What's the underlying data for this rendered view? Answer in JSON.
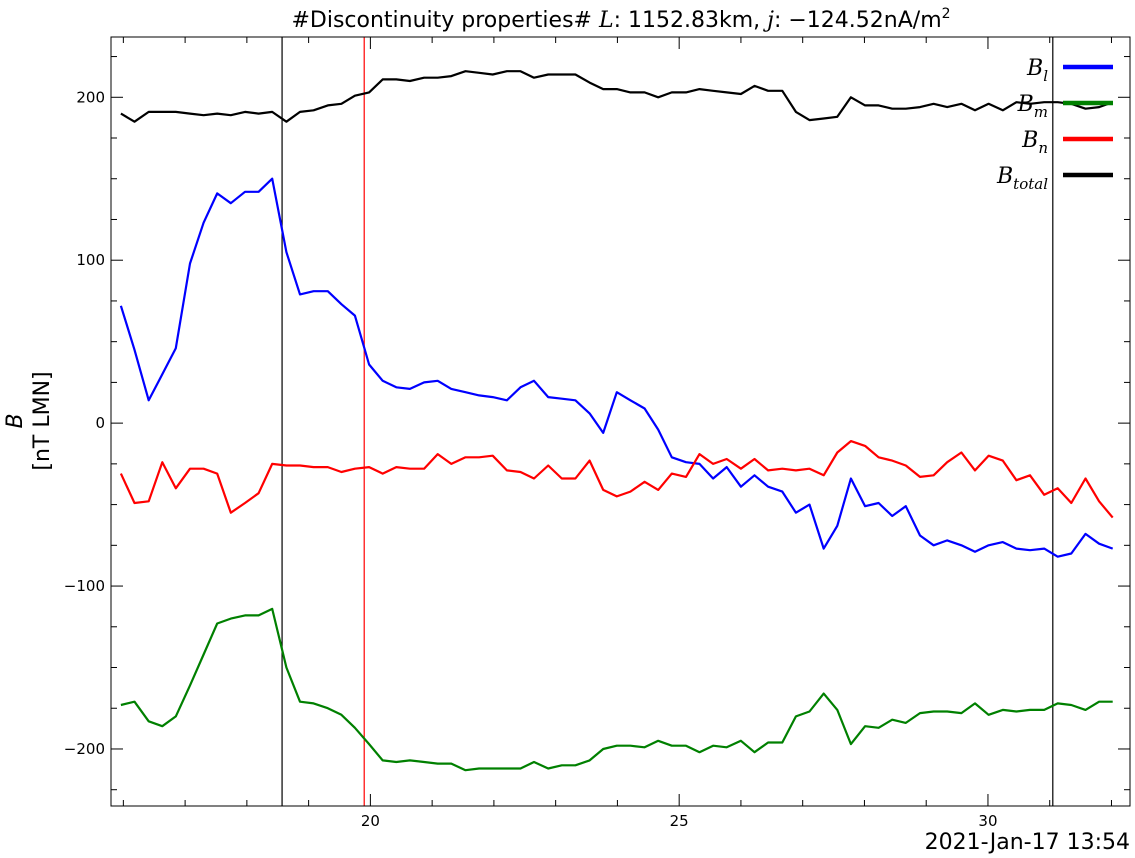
{
  "chart_data": {
    "type": "line",
    "title": "#Discontinuity properties# L: 1152.83km, j: −124.52nA/m²",
    "title_parts": {
      "prefix": "#Discontinuity properties# ",
      "L_symbol": "L",
      "L_value": ": 1152.83km, ",
      "j_symbol": "j",
      "j_value": ": −124.52nA/m",
      "j_exp": "2"
    },
    "ylabel_line1": "B",
    "ylabel_line2": "[nT LMN]",
    "footer": "2021-Jan-17 13:54",
    "xlim": [
      15.8,
      32.3
    ],
    "ylim": [
      -235,
      237
    ],
    "x_ticks": [
      20,
      25,
      30
    ],
    "x_tick_labels": [
      "20",
      "25",
      "30"
    ],
    "y_ticks": [
      -200,
      -100,
      0,
      100,
      200
    ],
    "y_tick_labels": [
      "−200",
      "−100",
      "0",
      "100",
      "200"
    ],
    "legend_position": "top-right",
    "vlines": [
      {
        "x": 18.57,
        "color": "#000000"
      },
      {
        "x": 19.9,
        "color": "#ff0000"
      },
      {
        "x": 31.05,
        "color": "#000000"
      }
    ],
    "x": [
      15.96,
      16.18,
      16.41,
      16.63,
      16.85,
      17.08,
      17.3,
      17.52,
      17.74,
      17.97,
      18.19,
      18.41,
      18.64,
      18.86,
      19.08,
      19.31,
      19.53,
      19.75,
      19.98,
      20.2,
      20.42,
      20.64,
      20.87,
      21.09,
      21.31,
      21.54,
      21.76,
      21.98,
      22.21,
      22.43,
      22.65,
      22.88,
      23.1,
      23.32,
      23.55,
      23.77,
      23.99,
      24.21,
      24.44,
      24.66,
      24.88,
      25.11,
      25.33,
      25.55,
      25.77,
      26.0,
      26.22,
      26.44,
      26.67,
      26.89,
      27.11,
      27.34,
      27.56,
      27.78,
      28.01,
      28.23,
      28.45,
      28.67,
      28.9,
      29.12,
      29.34,
      29.57,
      29.79,
      30.01,
      30.24,
      30.46,
      30.68,
      30.91,
      31.13,
      31.35,
      31.58,
      31.8,
      32.02
    ],
    "series": [
      {
        "name": "B_l",
        "base": "B",
        "sub": "l",
        "color": "#0000ff",
        "values": [
          72,
          45,
          14,
          30,
          46,
          98,
          123,
          141,
          135,
          142,
          142,
          150,
          105,
          79,
          81,
          81,
          73,
          66,
          36,
          26,
          22,
          21,
          25,
          26,
          21,
          19,
          17,
          16,
          14,
          22,
          26,
          16,
          15,
          14,
          6,
          -6,
          19,
          14,
          9,
          -4,
          -21,
          -24,
          -25,
          -34,
          -27,
          -39,
          -32,
          -39,
          -42,
          -55,
          -50,
          -77,
          -63,
          -34,
          -51,
          -49,
          -57,
          -51,
          -69,
          -75,
          -72,
          -75,
          -79,
          -75,
          -73,
          -77,
          -78,
          -77,
          -82,
          -80,
          -68,
          -74,
          -77
        ]
      },
      {
        "name": "B_m",
        "base": "B",
        "sub": "m",
        "color": "#008000",
        "values": [
          -173,
          -171,
          -183,
          -186,
          -180,
          -161,
          -142,
          -123,
          -120,
          -118,
          -118,
          -114,
          -150,
          -171,
          -172,
          -175,
          -179,
          -187,
          -197,
          -207,
          -208,
          -207,
          -208,
          -209,
          -209,
          -213,
          -212,
          -212,
          -212,
          -212,
          -208,
          -212,
          -210,
          -210,
          -207,
          -200,
          -198,
          -198,
          -199,
          -195,
          -198,
          -198,
          -202,
          -198,
          -199,
          -195,
          -202,
          -196,
          -196,
          -180,
          -177,
          -166,
          -176,
          -197,
          -186,
          -187,
          -182,
          -184,
          -178,
          -177,
          -177,
          -178,
          -172,
          -179,
          -176,
          -177,
          -176,
          -176,
          -172,
          -173,
          -176,
          -171,
          -171
        ]
      },
      {
        "name": "B_n",
        "base": "B",
        "sub": "n",
        "color": "#ff0000",
        "values": [
          -31,
          -49,
          -48,
          -24,
          -40,
          -28,
          -28,
          -31,
          -55,
          -49,
          -43,
          -25,
          -26,
          -26,
          -27,
          -27,
          -30,
          -28,
          -27,
          -31,
          -27,
          -28,
          -28,
          -19,
          -25,
          -21,
          -21,
          -20,
          -29,
          -30,
          -34,
          -26,
          -34,
          -34,
          -23,
          -41,
          -45,
          -42,
          -36,
          -41,
          -31,
          -33,
          -19,
          -25,
          -22,
          -28,
          -22,
          -29,
          -28,
          -29,
          -28,
          -32,
          -18,
          -11,
          -14,
          -21,
          -23,
          -26,
          -33,
          -32,
          -24,
          -18,
          -29,
          -20,
          -23,
          -35,
          -32,
          -44,
          -40,
          -49,
          -34,
          -48,
          -58
        ]
      },
      {
        "name": "B_total",
        "base": "B",
        "sub": "total",
        "color": "#000000",
        "values": [
          190,
          185,
          191,
          191,
          191,
          190,
          189,
          190,
          189,
          191,
          190,
          191,
          185,
          191,
          192,
          195,
          196,
          201,
          203,
          211,
          211,
          210,
          212,
          212,
          213,
          216,
          215,
          214,
          216,
          216,
          212,
          214,
          214,
          214,
          209,
          205,
          205,
          203,
          203,
          200,
          203,
          203,
          205,
          204,
          203,
          202,
          207,
          204,
          204,
          191,
          186,
          187,
          188,
          200,
          195,
          195,
          193,
          193,
          194,
          196,
          194,
          196,
          192,
          196,
          192,
          197,
          196,
          197,
          197,
          196,
          193,
          194,
          197
        ]
      }
    ]
  }
}
